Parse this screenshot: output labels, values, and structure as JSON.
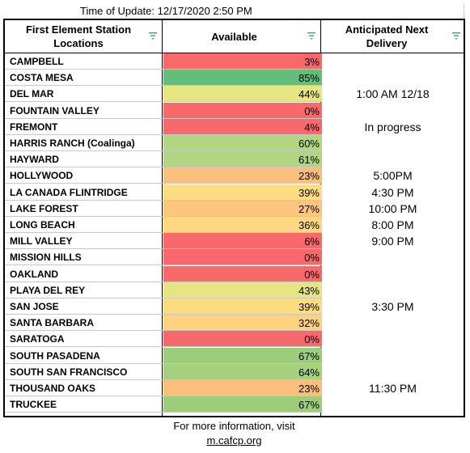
{
  "update": {
    "label": "Time of Update:",
    "value": "12/17/2020 2:50 PM"
  },
  "headers": {
    "location_line1": "First Element Station",
    "location_line2": "Locations",
    "available": "Available",
    "delivery_line1": "Anticipated Next",
    "delivery_line2": "Delivery"
  },
  "rows": [
    {
      "location": "CAMPBELL",
      "available": "3%",
      "level": 3,
      "color": "#f8696b",
      "delivery": ""
    },
    {
      "location": "COSTA MESA",
      "available": "85%",
      "level": 85,
      "color": "#63be7b",
      "delivery": ""
    },
    {
      "location": "DEL MAR",
      "available": "44%",
      "level": 44,
      "color": "#e6e483",
      "delivery": "1:00 AM 12/18"
    },
    {
      "location": "FOUNTAIN VALLEY",
      "available": "0%",
      "level": 0,
      "color": "#f8696b",
      "delivery": ""
    },
    {
      "location": "FREMONT",
      "available": "4%",
      "level": 4,
      "color": "#f8696b",
      "delivery": "In progress"
    },
    {
      "location": "HARRIS RANCH (Coalinga)",
      "available": "60%",
      "level": 60,
      "color": "#b1d580",
      "delivery": ""
    },
    {
      "location": "HAYWARD",
      "available": "61%",
      "level": 61,
      "color": "#b1d580",
      "delivery": ""
    },
    {
      "location": "HOLLYWOOD",
      "available": "23%",
      "level": 23,
      "color": "#fcbf7b",
      "delivery": "5:00PM"
    },
    {
      "location": "LA CANADA FLINTRIDGE",
      "available": "39%",
      "level": 39,
      "color": "#fedd81",
      "delivery": "4:30 PM"
    },
    {
      "location": "LAKE FOREST",
      "available": "27%",
      "level": 27,
      "color": "#fdc57d",
      "delivery": "10:00 PM"
    },
    {
      "location": "LONG BEACH",
      "available": "36%",
      "level": 36,
      "color": "#fed880",
      "delivery": "8:00 PM"
    },
    {
      "location": "MILL VALLEY",
      "available": "6%",
      "level": 6,
      "color": "#f8696b",
      "delivery": "9:00 PM"
    },
    {
      "location": "MISSION HILLS",
      "available": "0%",
      "level": 0,
      "color": "#f8696b",
      "delivery": ""
    },
    {
      "location": "OAKLAND",
      "available": "0%",
      "level": 0,
      "color": "#f8696b",
      "delivery": ""
    },
    {
      "location": "PLAYA DEL REY",
      "available": "43%",
      "level": 43,
      "color": "#e6e483",
      "delivery": ""
    },
    {
      "location": "SAN JOSE",
      "available": "39%",
      "level": 39,
      "color": "#fedd81",
      "delivery": "3:30 PM"
    },
    {
      "location": "SANTA BARBARA",
      "available": "32%",
      "level": 32,
      "color": "#fed27f",
      "delivery": ""
    },
    {
      "location": "SARATOGA",
      "available": "0%",
      "level": 0,
      "color": "#f8696b",
      "delivery": ""
    },
    {
      "location": "SOUTH PASADENA",
      "available": "67%",
      "level": 67,
      "color": "#9bcd7d",
      "delivery": ""
    },
    {
      "location": "SOUTH SAN FRANCISCO",
      "available": "64%",
      "level": 64,
      "color": "#a5d07e",
      "delivery": ""
    },
    {
      "location": "THOUSAND OAKS",
      "available": "23%",
      "level": 23,
      "color": "#fcbf7b",
      "delivery": "11:30 PM"
    },
    {
      "location": "TRUCKEE",
      "available": "67%",
      "level": 67,
      "color": "#9bcd7d",
      "delivery": ""
    }
  ],
  "footer": {
    "line1": "For more information, visit",
    "link": "m.cafcp.org"
  },
  "colors": {
    "filter_icon": "#4e9b6f",
    "grid": "#000000"
  }
}
